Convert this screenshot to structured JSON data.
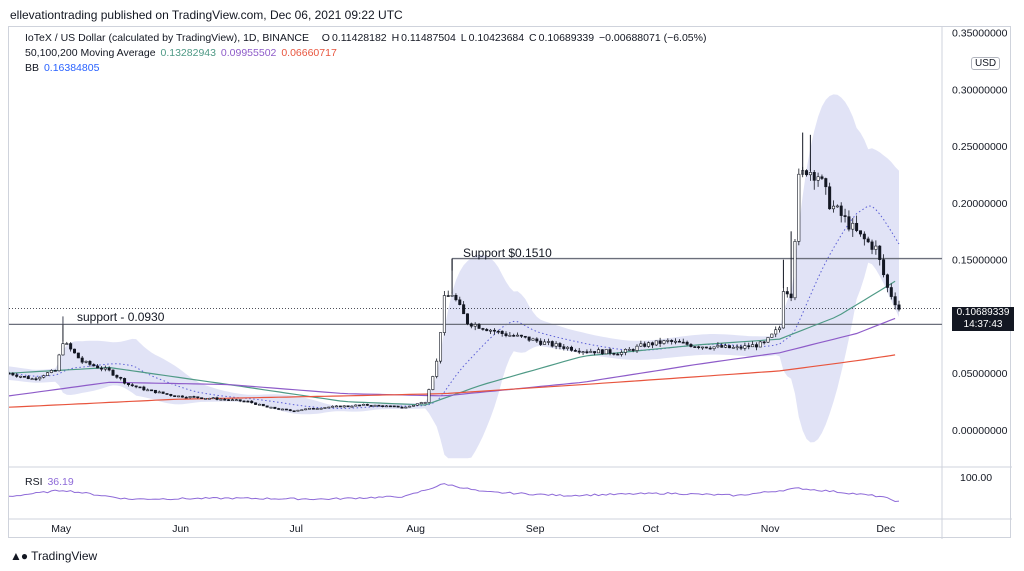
{
  "header": {
    "publisher_line": "ellevationtrading published on TradingView.com, Dec 06, 2021 09:22 UTC"
  },
  "legend": {
    "symbol_line": {
      "title": "IoTeX / US Dollar (calculated by TradingView), 1D, BINANCE",
      "o_label": "O",
      "o_value": "0.11428182",
      "h_label": "H",
      "h_value": "0.11487504",
      "l_label": "L",
      "l_value": "0.10423684",
      "c_label": "C",
      "c_value": "0.10689339",
      "change": "−0.00688071 (−6.05%)"
    },
    "ma_line": {
      "label": "50,100,200 Moving Average",
      "ma50": "0.13282943",
      "ma100": "0.09955502",
      "ma200": "0.06660717"
    },
    "bb_line": {
      "label": "BB",
      "value": "0.16384805"
    }
  },
  "price_axis": {
    "currency_badge": "USD",
    "ticks": [
      "0.35000000",
      "0.30000000",
      "0.25000000",
      "0.20000000",
      "0.15000000",
      "0.10000000",
      "0.05000000",
      "0.00000000"
    ],
    "ylim": [
      -0.03,
      0.355
    ],
    "last_price_label": "0.10689339",
    "countdown_label": "14:37:43"
  },
  "rsi": {
    "label": "RSI",
    "value": "36.19",
    "axis_tick": "100.00"
  },
  "time_axis": {
    "ticks": [
      "May",
      "Jun",
      "Jul",
      "Aug",
      "Sep",
      "Oct",
      "Nov",
      "Dec"
    ]
  },
  "annotations": {
    "support_low": {
      "text": "support - 0.0930",
      "level": 0.093
    },
    "support_high": {
      "text": "Support $0.1510",
      "level": 0.151
    }
  },
  "footer": {
    "brand": "TradingView"
  },
  "colors": {
    "candle": "#131722",
    "ma50": "#4f9a86",
    "ma100": "#8e5cc9",
    "ma200": "#e8553e",
    "bb_fill": "#c9ccef",
    "bb_basis": "#5b5fd6",
    "rsi_line": "#8e6ad8",
    "support_line": "#6b6f7b"
  },
  "chart_data": {
    "type": "candlestick",
    "title": "IoTeX / US Dollar (calculated by TradingView), 1D, BINANCE",
    "x_range": [
      "2021-04-19",
      "2021-12-06"
    ],
    "date_axis_ticks": [
      {
        "label": "May",
        "date": "2021-05-01"
      },
      {
        "label": "Jun",
        "date": "2021-06-01"
      },
      {
        "label": "Jul",
        "date": "2021-07-01"
      },
      {
        "label": "Aug",
        "date": "2021-08-01"
      },
      {
        "label": "Sep",
        "date": "2021-09-01"
      },
      {
        "label": "Oct",
        "date": "2021-10-01"
      },
      {
        "label": "Nov",
        "date": "2021-11-01"
      },
      {
        "label": "Dec",
        "date": "2021-12-01"
      }
    ],
    "ylim": [
      -0.03,
      0.355
    ],
    "close_path": [
      [
        "2021-04-19",
        0.05
      ],
      [
        "2021-04-25",
        0.045
      ],
      [
        "2021-04-29",
        0.05
      ],
      [
        "2021-05-01",
        0.052
      ],
      [
        "2021-05-03",
        0.078
      ],
      [
        "2021-05-08",
        0.06
      ],
      [
        "2021-05-15",
        0.052
      ],
      [
        "2021-05-20",
        0.04
      ],
      [
        "2021-05-25",
        0.035
      ],
      [
        "2021-06-01",
        0.03
      ],
      [
        "2021-06-10",
        0.028
      ],
      [
        "2021-06-20",
        0.025
      ],
      [
        "2021-06-25",
        0.02
      ],
      [
        "2021-07-01",
        0.017
      ],
      [
        "2021-07-10",
        0.02
      ],
      [
        "2021-07-20",
        0.022
      ],
      [
        "2021-07-31",
        0.02
      ],
      [
        "2021-08-05",
        0.025
      ],
      [
        "2021-08-08",
        0.06
      ],
      [
        "2021-08-10",
        0.115
      ],
      [
        "2021-08-12",
        0.12
      ],
      [
        "2021-08-16",
        0.095
      ],
      [
        "2021-08-25",
        0.085
      ],
      [
        "2021-09-01",
        0.08
      ],
      [
        "2021-09-07",
        0.075
      ],
      [
        "2021-09-15",
        0.07
      ],
      [
        "2021-09-25",
        0.068
      ],
      [
        "2021-10-01",
        0.075
      ],
      [
        "2021-10-07",
        0.078
      ],
      [
        "2021-10-15",
        0.074
      ],
      [
        "2021-10-25",
        0.072
      ],
      [
        "2021-11-01",
        0.076
      ],
      [
        "2021-11-05",
        0.09
      ],
      [
        "2021-11-06",
        0.125
      ],
      [
        "2021-11-08",
        0.12
      ],
      [
        "2021-11-10",
        0.22
      ],
      [
        "2021-11-12",
        0.23
      ],
      [
        "2021-11-15",
        0.225
      ],
      [
        "2021-11-18",
        0.2
      ],
      [
        "2021-11-22",
        0.185
      ],
      [
        "2021-11-26",
        0.17
      ],
      [
        "2021-11-30",
        0.16
      ],
      [
        "2021-12-03",
        0.125
      ],
      [
        "2021-12-06",
        0.1069
      ]
    ],
    "moving_averages": [
      {
        "name": "MA50",
        "latest": 0.13282943,
        "path": [
          [
            "2021-04-19",
            0.05
          ],
          [
            "2021-05-15",
            0.055
          ],
          [
            "2021-06-15",
            0.04
          ],
          [
            "2021-07-15",
            0.025
          ],
          [
            "2021-08-05",
            0.022
          ],
          [
            "2021-08-20",
            0.04
          ],
          [
            "2021-09-15",
            0.065
          ],
          [
            "2021-10-15",
            0.075
          ],
          [
            "2021-11-05",
            0.08
          ],
          [
            "2021-11-20",
            0.1
          ],
          [
            "2021-12-06",
            0.133
          ]
        ]
      },
      {
        "name": "MA100",
        "latest": 0.09955502,
        "path": [
          [
            "2021-04-19",
            0.03
          ],
          [
            "2021-05-15",
            0.042
          ],
          [
            "2021-06-15",
            0.04
          ],
          [
            "2021-07-15",
            0.032
          ],
          [
            "2021-08-10",
            0.03
          ],
          [
            "2021-09-15",
            0.042
          ],
          [
            "2021-10-15",
            0.058
          ],
          [
            "2021-11-05",
            0.068
          ],
          [
            "2021-11-25",
            0.085
          ],
          [
            "2021-12-06",
            0.0996
          ]
        ]
      },
      {
        "name": "MA200",
        "latest": 0.06660717,
        "path": [
          [
            "2021-04-19",
            0.02
          ],
          [
            "2021-06-01",
            0.027
          ],
          [
            "2021-07-15",
            0.03
          ],
          [
            "2021-08-10",
            0.032
          ],
          [
            "2021-09-15",
            0.04
          ],
          [
            "2021-10-15",
            0.047
          ],
          [
            "2021-11-05",
            0.052
          ],
          [
            "2021-11-25",
            0.061
          ],
          [
            "2021-12-06",
            0.0666
          ]
        ]
      }
    ],
    "bollinger_basis_latest": 0.16384805,
    "support_levels": [
      0.093,
      0.151
    ],
    "rsi": {
      "latest": 36.19,
      "path": [
        [
          "2021-04-19",
          48
        ],
        [
          "2021-05-03",
          62
        ],
        [
          "2021-05-20",
          42
        ],
        [
          "2021-06-15",
          44
        ],
        [
          "2021-07-10",
          42
        ],
        [
          "2021-07-31",
          48
        ],
        [
          "2021-08-10",
          76
        ],
        [
          "2021-08-20",
          58
        ],
        [
          "2021-09-10",
          50
        ],
        [
          "2021-10-07",
          55
        ],
        [
          "2021-10-25",
          50
        ],
        [
          "2021-11-10",
          66
        ],
        [
          "2021-11-20",
          58
        ],
        [
          "2021-12-01",
          48
        ],
        [
          "2021-12-06",
          36.19
        ]
      ]
    }
  }
}
